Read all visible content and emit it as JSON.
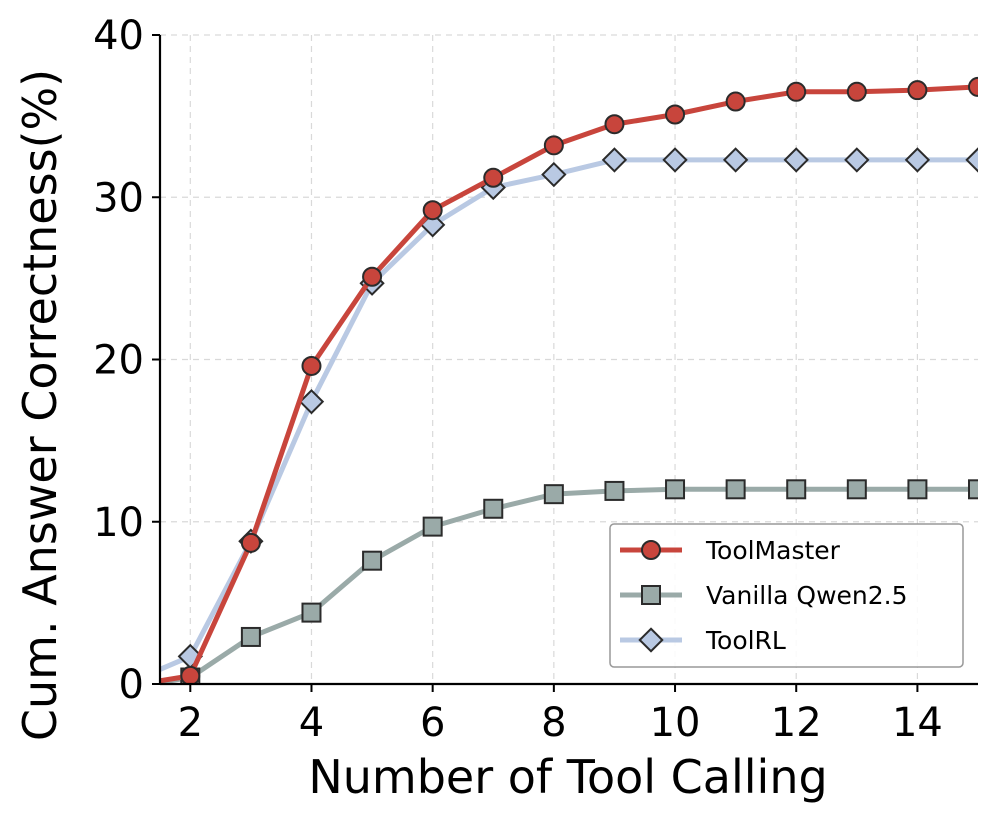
{
  "chart_data": {
    "type": "line",
    "xlabel": "Number of Tool Calling",
    "ylabel": "Cum. Answer Correctness(%)",
    "xlim": [
      1.5,
      15
    ],
    "ylim": [
      0,
      40
    ],
    "x_ticks": [
      2,
      4,
      6,
      8,
      10,
      12,
      14
    ],
    "y_ticks": [
      0,
      10,
      20,
      30,
      40
    ],
    "grid": true,
    "legend_position": "lower-right",
    "series": [
      {
        "name": "ToolMaster",
        "marker": "circle",
        "color": "#c8453c",
        "x": [
          1.5,
          2,
          3,
          4,
          5,
          6,
          7,
          8,
          9,
          10,
          11,
          12,
          13,
          14,
          15
        ],
        "values": [
          0.2,
          0.5,
          8.7,
          19.6,
          25.1,
          29.2,
          31.2,
          33.2,
          34.5,
          35.1,
          35.9,
          36.5,
          36.5,
          36.6,
          36.8
        ]
      },
      {
        "name": "Vanilla Qwen2.5",
        "marker": "square",
        "color": "#9aaaa8",
        "x": [
          1.5,
          2,
          3,
          4,
          5,
          6,
          7,
          8,
          9,
          10,
          11,
          12,
          13,
          14,
          15
        ],
        "values": [
          0.1,
          0.4,
          2.9,
          4.4,
          7.6,
          9.7,
          10.8,
          11.7,
          11.9,
          12.0,
          12.0,
          12.0,
          12.0,
          12.0,
          12.0
        ]
      },
      {
        "name": "ToolRL",
        "marker": "diamond",
        "color": "#b9c9e3",
        "x": [
          1.5,
          2,
          3,
          4,
          5,
          6,
          7,
          8,
          9,
          10,
          11,
          12,
          13,
          14,
          15
        ],
        "values": [
          0.9,
          1.7,
          8.8,
          17.4,
          24.7,
          28.3,
          30.6,
          31.4,
          32.3,
          32.3,
          32.3,
          32.3,
          32.3,
          32.3,
          32.3
        ]
      }
    ]
  }
}
